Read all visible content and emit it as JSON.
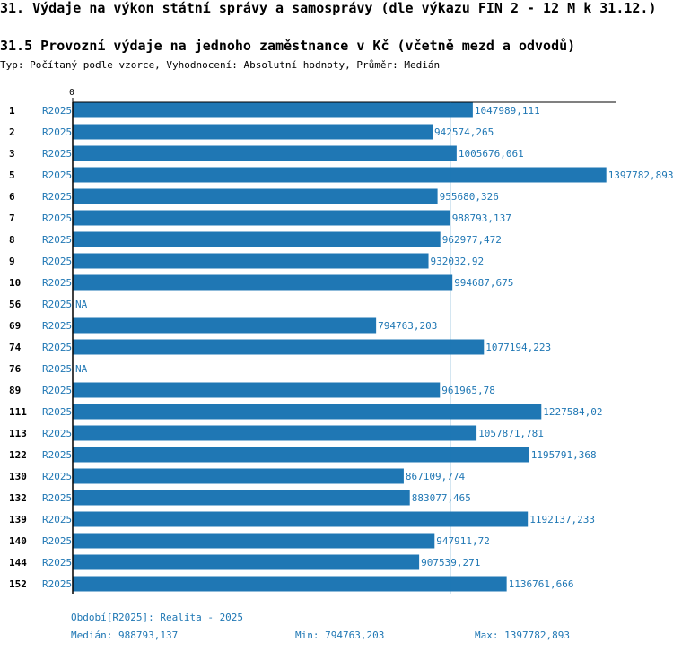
{
  "header": {
    "title": "31. Výdaje na výkon státní správy a samosprávy (dle výkazu FIN 2 - 12 M k 31.12.)",
    "subtitle": "31.5 Provozní výdaje na jednoho zaměstnance v Kč (včetně mezd a odvodů)",
    "meta": "Typ: Počítaný podle vzorce, Vyhodnocení: Absolutní hodnoty, Průměr: Medián"
  },
  "chart_data": {
    "type": "bar",
    "orientation": "horizontal",
    "title": "31.5 Provozní výdaje na jednoho zaměstnance v Kč (včetně mezd a odvodů)",
    "axis_zero_label": "0",
    "series_name": "R2025",
    "xlim": [
      0,
      1422000
    ],
    "median": 988793.137,
    "categories": [
      "1",
      "2",
      "3",
      "5",
      "6",
      "7",
      "8",
      "9",
      "10",
      "56",
      "69",
      "74",
      "76",
      "89",
      "111",
      "113",
      "122",
      "130",
      "132",
      "139",
      "140",
      "144",
      "152"
    ],
    "values": [
      1047989.111,
      942574.265,
      1005676.061,
      1397782.893,
      955680.326,
      988793.137,
      962977.472,
      932032.92,
      994687.675,
      null,
      794763.203,
      1077194.223,
      null,
      961965.78,
      1227584.02,
      1057871.781,
      1195791.368,
      867109.774,
      883077.465,
      1192137.233,
      947911.72,
      907539.271,
      1136761.666
    ],
    "value_labels": [
      "1047989,111",
      "942574,265",
      "1005676,061",
      "1397782,893",
      "955680,326",
      "988793,137",
      "962977,472",
      "932032,92",
      "994687,675",
      "NA",
      "794763,203",
      "1077194,223",
      "NA",
      "961965,78",
      "1227584,02",
      "1057871,781",
      "1195791,368",
      "867109,774",
      "883077,465",
      "1192137,233",
      "947911,72",
      "907539,271",
      "1136761,666"
    ]
  },
  "footer": {
    "period": "Období[R2025]: Realita - 2025",
    "median": "Medián: 988793,137",
    "min": "Min: 794763,203",
    "max": "Max: 1397782,893"
  },
  "colors": {
    "bar": "#1f77b4",
    "text_accent": "#1f77b4"
  }
}
